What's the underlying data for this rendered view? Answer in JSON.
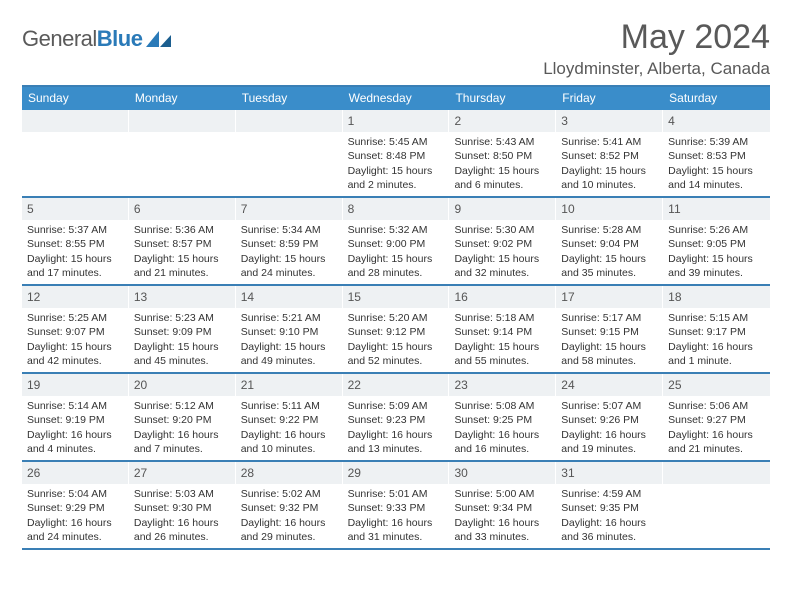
{
  "logo": {
    "word1": "General",
    "word2": "Blue"
  },
  "title": "May 2024",
  "location": "Lloydminster, Alberta, Canada",
  "header_bg": "#3a8dca",
  "border_color": "#3a7fb5",
  "daynum_bg": "#eef1f3",
  "text_color": "#333333",
  "muted_color": "#595959",
  "cell_fontsize": 10.5,
  "days": [
    "Sunday",
    "Monday",
    "Tuesday",
    "Wednesday",
    "Thursday",
    "Friday",
    "Saturday"
  ],
  "weeks": [
    [
      null,
      null,
      null,
      {
        "n": "1",
        "sr": "5:45 AM",
        "ss": "8:48 PM",
        "dl": "15 hours and 2 minutes."
      },
      {
        "n": "2",
        "sr": "5:43 AM",
        "ss": "8:50 PM",
        "dl": "15 hours and 6 minutes."
      },
      {
        "n": "3",
        "sr": "5:41 AM",
        "ss": "8:52 PM",
        "dl": "15 hours and 10 minutes."
      },
      {
        "n": "4",
        "sr": "5:39 AM",
        "ss": "8:53 PM",
        "dl": "15 hours and 14 minutes."
      }
    ],
    [
      {
        "n": "5",
        "sr": "5:37 AM",
        "ss": "8:55 PM",
        "dl": "15 hours and 17 minutes."
      },
      {
        "n": "6",
        "sr": "5:36 AM",
        "ss": "8:57 PM",
        "dl": "15 hours and 21 minutes."
      },
      {
        "n": "7",
        "sr": "5:34 AM",
        "ss": "8:59 PM",
        "dl": "15 hours and 24 minutes."
      },
      {
        "n": "8",
        "sr": "5:32 AM",
        "ss": "9:00 PM",
        "dl": "15 hours and 28 minutes."
      },
      {
        "n": "9",
        "sr": "5:30 AM",
        "ss": "9:02 PM",
        "dl": "15 hours and 32 minutes."
      },
      {
        "n": "10",
        "sr": "5:28 AM",
        "ss": "9:04 PM",
        "dl": "15 hours and 35 minutes."
      },
      {
        "n": "11",
        "sr": "5:26 AM",
        "ss": "9:05 PM",
        "dl": "15 hours and 39 minutes."
      }
    ],
    [
      {
        "n": "12",
        "sr": "5:25 AM",
        "ss": "9:07 PM",
        "dl": "15 hours and 42 minutes."
      },
      {
        "n": "13",
        "sr": "5:23 AM",
        "ss": "9:09 PM",
        "dl": "15 hours and 45 minutes."
      },
      {
        "n": "14",
        "sr": "5:21 AM",
        "ss": "9:10 PM",
        "dl": "15 hours and 49 minutes."
      },
      {
        "n": "15",
        "sr": "5:20 AM",
        "ss": "9:12 PM",
        "dl": "15 hours and 52 minutes."
      },
      {
        "n": "16",
        "sr": "5:18 AM",
        "ss": "9:14 PM",
        "dl": "15 hours and 55 minutes."
      },
      {
        "n": "17",
        "sr": "5:17 AM",
        "ss": "9:15 PM",
        "dl": "15 hours and 58 minutes."
      },
      {
        "n": "18",
        "sr": "5:15 AM",
        "ss": "9:17 PM",
        "dl": "16 hours and 1 minute."
      }
    ],
    [
      {
        "n": "19",
        "sr": "5:14 AM",
        "ss": "9:19 PM",
        "dl": "16 hours and 4 minutes."
      },
      {
        "n": "20",
        "sr": "5:12 AM",
        "ss": "9:20 PM",
        "dl": "16 hours and 7 minutes."
      },
      {
        "n": "21",
        "sr": "5:11 AM",
        "ss": "9:22 PM",
        "dl": "16 hours and 10 minutes."
      },
      {
        "n": "22",
        "sr": "5:09 AM",
        "ss": "9:23 PM",
        "dl": "16 hours and 13 minutes."
      },
      {
        "n": "23",
        "sr": "5:08 AM",
        "ss": "9:25 PM",
        "dl": "16 hours and 16 minutes."
      },
      {
        "n": "24",
        "sr": "5:07 AM",
        "ss": "9:26 PM",
        "dl": "16 hours and 19 minutes."
      },
      {
        "n": "25",
        "sr": "5:06 AM",
        "ss": "9:27 PM",
        "dl": "16 hours and 21 minutes."
      }
    ],
    [
      {
        "n": "26",
        "sr": "5:04 AM",
        "ss": "9:29 PM",
        "dl": "16 hours and 24 minutes."
      },
      {
        "n": "27",
        "sr": "5:03 AM",
        "ss": "9:30 PM",
        "dl": "16 hours and 26 minutes."
      },
      {
        "n": "28",
        "sr": "5:02 AM",
        "ss": "9:32 PM",
        "dl": "16 hours and 29 minutes."
      },
      {
        "n": "29",
        "sr": "5:01 AM",
        "ss": "9:33 PM",
        "dl": "16 hours and 31 minutes."
      },
      {
        "n": "30",
        "sr": "5:00 AM",
        "ss": "9:34 PM",
        "dl": "16 hours and 33 minutes."
      },
      {
        "n": "31",
        "sr": "4:59 AM",
        "ss": "9:35 PM",
        "dl": "16 hours and 36 minutes."
      },
      null
    ]
  ],
  "labels": {
    "sunrise": "Sunrise:",
    "sunset": "Sunset:",
    "daylight": "Daylight:"
  }
}
